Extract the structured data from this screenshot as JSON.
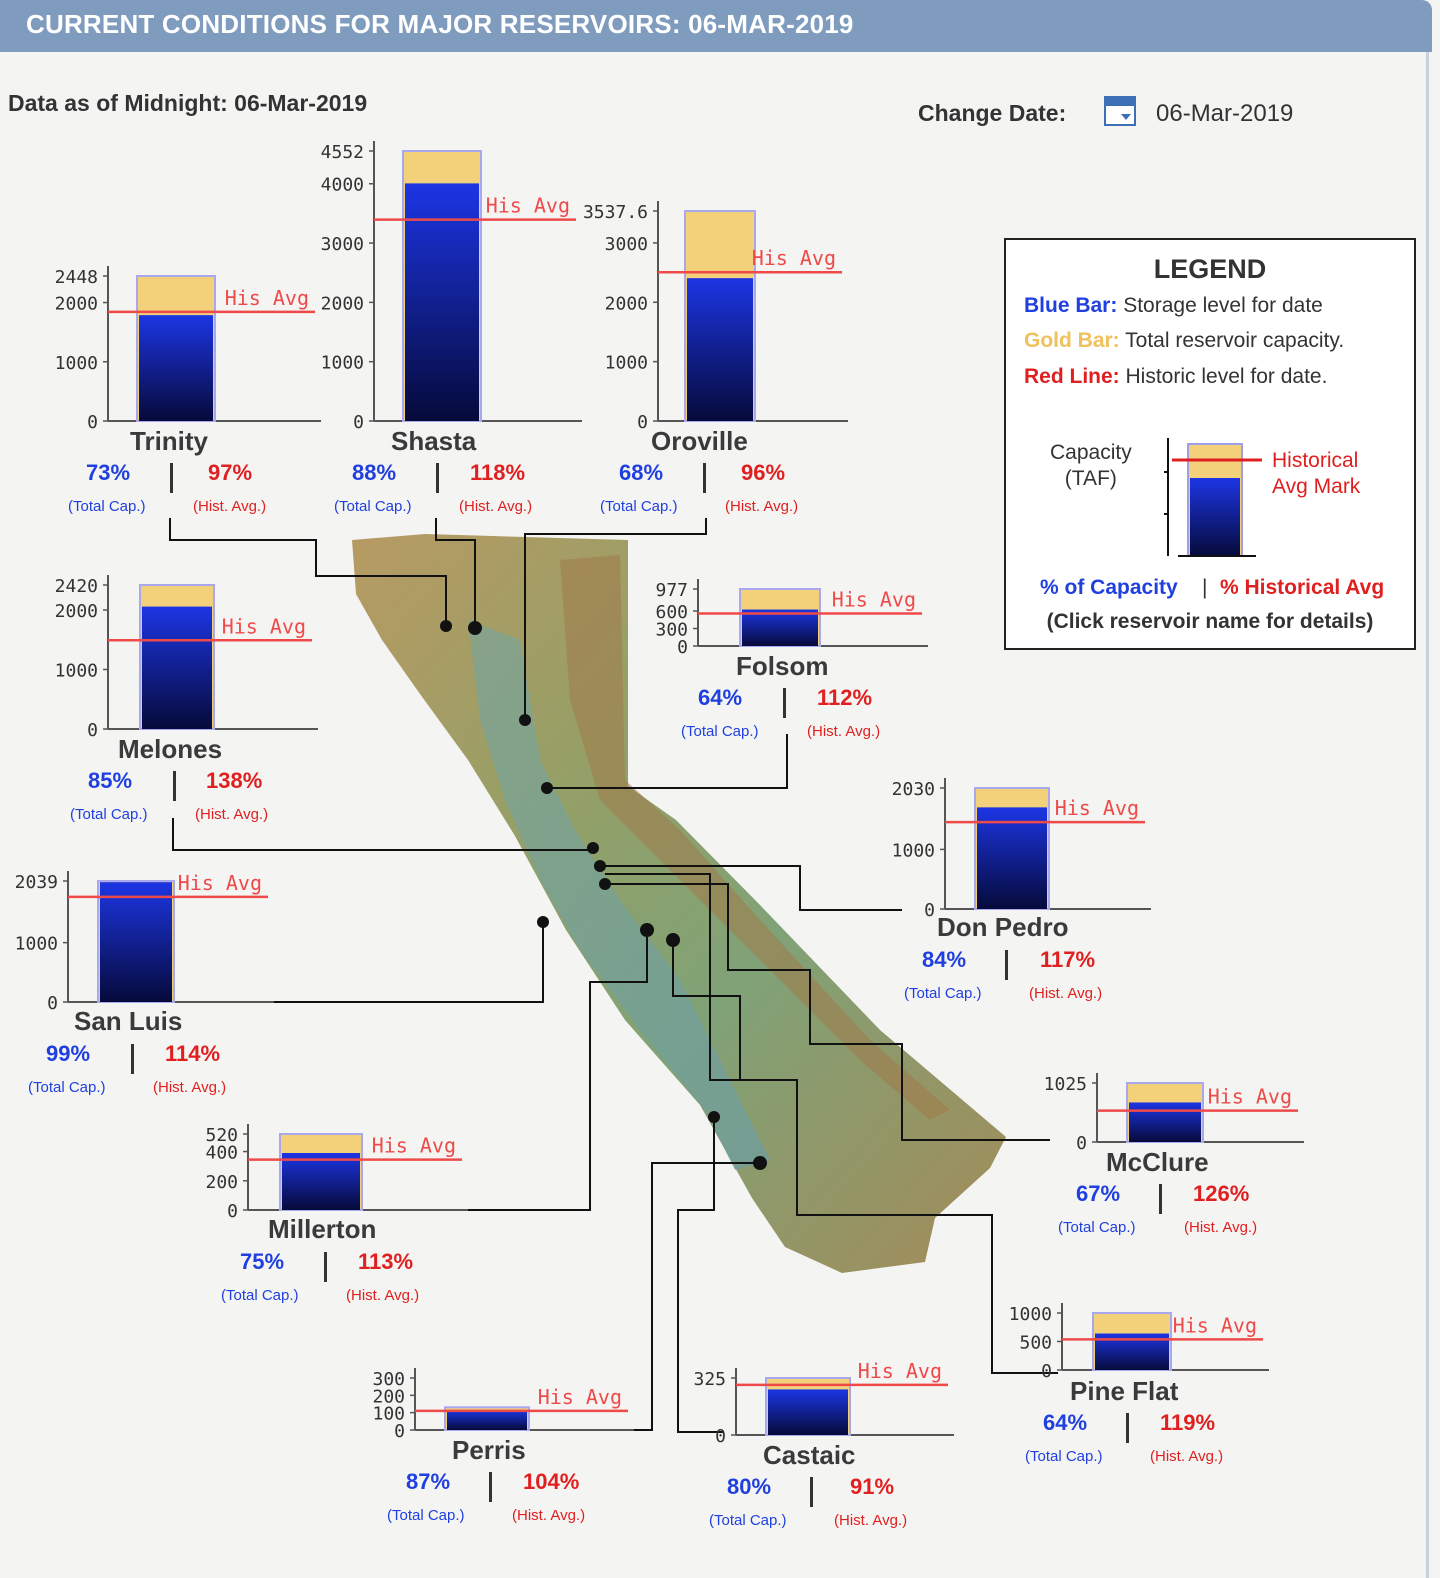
{
  "header": {
    "title": "CURRENT CONDITIONS FOR MAJOR RESERVOIRS: 06-MAR-2019"
  },
  "as_of": "Data as of Midnight: 06-Mar-2019",
  "change_date": {
    "label": "Change Date:",
    "value": "06-Mar-2019",
    "icon": "calendar-icon"
  },
  "colors": {
    "storage": "#1a2fd6",
    "capacity": "#f3d07a",
    "historic": "#ef4a4a",
    "pct_capacity": "#1f3fe0",
    "pct_hist": "#e02020"
  },
  "his_avg_label": "His Avg",
  "total_cap_label": "(Total Cap.)",
  "hist_avg_label": "(Hist. Avg.)",
  "legend": {
    "title": "LEGEND",
    "blue_key": "Blue Bar:",
    "blue_text": "Storage level for date",
    "gold_key": "Gold Bar:",
    "gold_text": "Total reservoir capacity.",
    "red_key": "Red Line:",
    "red_text": "Historic level for date.",
    "capacity_line1": "Capacity",
    "capacity_line2": "(TAF)",
    "hist_line1": "Historical",
    "hist_line2": "Avg Mark",
    "pct_capacity": "% of Capacity",
    "separator": "|",
    "pct_hist": "% Historical Avg",
    "click_note": "(Click reservoir name for details)"
  },
  "chart_data": {
    "type": "bar",
    "title": "CURRENT CONDITIONS FOR MAJOR RESERVOIRS: 06-MAR-2019",
    "units": "TAF",
    "series_meaning": {
      "storage": "Storage level for date",
      "capacity": "Total reservoir capacity",
      "historic_avg": "Historic level for date"
    },
    "reservoirs": [
      {
        "name": "Trinity",
        "capacity": 2448,
        "storage": 1787,
        "hist_avg": 1842,
        "pct_capacity": "73%",
        "pct_hist": "97%",
        "ticks": [
          "0",
          "1000",
          "2000",
          "2448"
        ]
      },
      {
        "name": "Shasta",
        "capacity": 4552,
        "storage": 4006,
        "hist_avg": 3395,
        "pct_capacity": "88%",
        "pct_hist": "118%",
        "ticks": [
          "0",
          "1000",
          "2000",
          "3000",
          "4000",
          "4552"
        ]
      },
      {
        "name": "Oroville",
        "capacity": 3537.6,
        "storage": 2406,
        "hist_avg": 2506,
        "pct_capacity": "68%",
        "pct_hist": "96%",
        "ticks": [
          "0",
          "1000",
          "2000",
          "3000",
          "3537.6"
        ]
      },
      {
        "name": "Folsom",
        "capacity": 977,
        "storage": 625,
        "hist_avg": 558,
        "pct_capacity": "64%",
        "pct_hist": "112%",
        "ticks": [
          "0",
          "300",
          "600",
          "977"
        ]
      },
      {
        "name": "Melones",
        "capacity": 2420,
        "storage": 2057,
        "hist_avg": 1491,
        "pct_capacity": "85%",
        "pct_hist": "138%",
        "ticks": [
          "0",
          "1000",
          "2000",
          "2420"
        ]
      },
      {
        "name": "Don Pedro",
        "capacity": 2030,
        "storage": 1705,
        "hist_avg": 1457,
        "pct_capacity": "84%",
        "pct_hist": "117%",
        "ticks": [
          "0",
          "1000",
          "2030"
        ]
      },
      {
        "name": "San Luis",
        "capacity": 2039,
        "storage": 2019,
        "hist_avg": 1771,
        "pct_capacity": "99%",
        "pct_hist": "114%",
        "ticks": [
          "0",
          "1000",
          "2039"
        ]
      },
      {
        "name": "Millerton",
        "capacity": 520,
        "storage": 390,
        "hist_avg": 345,
        "pct_capacity": "75%",
        "pct_hist": "113%",
        "ticks": [
          "0",
          "200",
          "400",
          "520"
        ]
      },
      {
        "name": "McClure",
        "capacity": 1025,
        "storage": 687,
        "hist_avg": 545,
        "pct_capacity": "67%",
        "pct_hist": "126%",
        "ticks": [
          "0",
          "1025"
        ]
      },
      {
        "name": "Pine Flat",
        "capacity": 1000,
        "storage": 640,
        "hist_avg": 538,
        "pct_capacity": "64%",
        "pct_hist": "119%",
        "ticks": [
          "0",
          "500",
          "1000"
        ]
      },
      {
        "name": "Perris",
        "capacity": 131,
        "storage": 114,
        "hist_avg": 110,
        "pct_capacity": "87%",
        "pct_hist": "104%",
        "ticks": [
          "0",
          "100",
          "200",
          "300"
        ]
      },
      {
        "name": "Castaic",
        "capacity": 325,
        "storage": 260,
        "hist_avg": 286,
        "pct_capacity": "80%",
        "pct_hist": "91%",
        "ticks": [
          "0",
          "325"
        ]
      }
    ]
  }
}
